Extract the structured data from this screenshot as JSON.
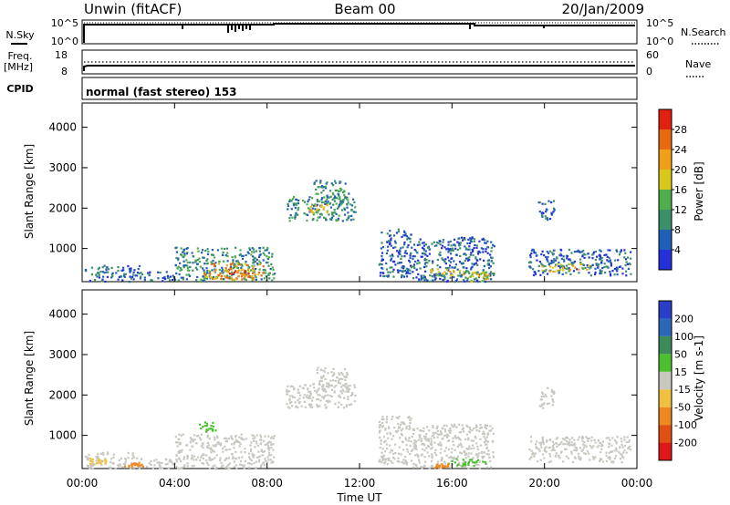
{
  "header": {
    "station": "Unwin (fitACF)",
    "beam": "Beam 00",
    "date": "20/Jan/2009"
  },
  "top_panels": {
    "nsky_label": "N.Sky",
    "nsky_ticks": [
      "10^5",
      "10^0"
    ],
    "nsearch_label": "N.Search",
    "nsearch_ticks": [
      "10^5",
      "10^0"
    ],
    "freq_label": "Freq.",
    "freq_unit": "[MHz]",
    "freq_ticks": [
      "18",
      "8"
    ],
    "nave_label": "Nave",
    "nave_ticks": [
      "60",
      "0"
    ],
    "cpid_label": "CPID",
    "cpid_text": "normal (fast stereo) 153"
  },
  "colors": {
    "power": [
      "#2430d8",
      "#1f5fb8",
      "#3b8f6a",
      "#4fae4c",
      "#d8c81c",
      "#f0a018",
      "#e86a10",
      "#e02010"
    ],
    "velocity": [
      "#2a3fc8",
      "#2d68b8",
      "#3d8a5a",
      "#4bbf2e",
      "#c8c8c0",
      "#f0c040",
      "#f08820",
      "#e05010",
      "#e01818"
    ],
    "velocity_ground": "#c8c8c0"
  },
  "chart_data": [
    {
      "type": "heatmap",
      "name": "Power",
      "ylabel": "Slant Range [km]",
      "yticks": [
        1000,
        2000,
        3000,
        4000
      ],
      "ylim": [
        180,
        4600
      ],
      "xlim": [
        0,
        24
      ],
      "colorbar_label": "Power [dB]",
      "colorbar_ticks": [
        4,
        8,
        12,
        16,
        20,
        24,
        28
      ],
      "colorbar_range": [
        0,
        32
      ],
      "regions": [
        {
          "t0": 0.1,
          "t1": 2.5,
          "r0": 200,
          "r1": 600,
          "level": 1
        },
        {
          "t0": 2.5,
          "t1": 4.0,
          "r0": 200,
          "r1": 450,
          "level": 1
        },
        {
          "t0": 4.0,
          "t1": 8.3,
          "r0": 200,
          "r1": 1050,
          "level": 2
        },
        {
          "t0": 5.2,
          "t1": 7.8,
          "r0": 250,
          "r1": 650,
          "level": 5
        },
        {
          "t0": 6.2,
          "t1": 7.4,
          "r0": 250,
          "r1": 500,
          "level": 6
        },
        {
          "t0": 8.8,
          "t1": 11.8,
          "r0": 1700,
          "r1": 2300,
          "level": 2
        },
        {
          "t0": 10.0,
          "t1": 11.5,
          "r0": 2100,
          "r1": 2700,
          "level": 2
        },
        {
          "t0": 9.8,
          "t1": 10.6,
          "r0": 1900,
          "r1": 2100,
          "level": 4
        },
        {
          "t0": 12.8,
          "t1": 14.2,
          "r0": 300,
          "r1": 1500,
          "level": 1
        },
        {
          "t0": 14.2,
          "t1": 17.8,
          "r0": 200,
          "r1": 1300,
          "level": 1
        },
        {
          "t0": 15.0,
          "t1": 16.5,
          "r0": 350,
          "r1": 550,
          "level": 4
        },
        {
          "t0": 16.5,
          "t1": 17.5,
          "r0": 250,
          "r1": 450,
          "level": 3
        },
        {
          "t0": 19.3,
          "t1": 23.7,
          "r0": 350,
          "r1": 1000,
          "level": 1
        },
        {
          "t0": 19.8,
          "t1": 22.0,
          "r0": 450,
          "r1": 650,
          "level": 4
        },
        {
          "t0": 19.7,
          "t1": 20.4,
          "r0": 1700,
          "r1": 2200,
          "level": 1
        },
        {
          "t0": 16.8,
          "t1": 17.6,
          "r0": 200,
          "r1": 400,
          "level": 4
        }
      ]
    },
    {
      "type": "heatmap",
      "name": "Velocity",
      "ylabel": "Slant Range [km]",
      "yticks": [
        1000,
        2000,
        3000,
        4000
      ],
      "ylim": [
        180,
        4600
      ],
      "xlim": [
        0,
        24
      ],
      "xlabel": "Time UT",
      "xticks": [
        "00:00",
        "04:00",
        "08:00",
        "12:00",
        "16:00",
        "20:00",
        "00:00"
      ],
      "colorbar_label": "Velocity [m s-1]",
      "colorbar_ticks": [
        200,
        100,
        50,
        15,
        -15,
        -50,
        -100,
        -200
      ],
      "regions": [
        {
          "t0": 0.1,
          "t1": 2.5,
          "r0": 200,
          "r1": 600,
          "level": 4
        },
        {
          "t0": 2.5,
          "t1": 4.0,
          "r0": 200,
          "r1": 450,
          "level": 4
        },
        {
          "t0": 4.0,
          "t1": 8.3,
          "r0": 200,
          "r1": 1050,
          "level": 4
        },
        {
          "t0": 8.8,
          "t1": 11.8,
          "r0": 1700,
          "r1": 2300,
          "level": 4
        },
        {
          "t0": 10.0,
          "t1": 11.5,
          "r0": 2100,
          "r1": 2700,
          "level": 4
        },
        {
          "t0": 12.8,
          "t1": 14.2,
          "r0": 300,
          "r1": 1500,
          "level": 4
        },
        {
          "t0": 14.2,
          "t1": 17.8,
          "r0": 200,
          "r1": 1300,
          "level": 4
        },
        {
          "t0": 19.3,
          "t1": 23.7,
          "r0": 350,
          "r1": 1000,
          "level": 4
        },
        {
          "t0": 19.7,
          "t1": 20.4,
          "r0": 1700,
          "r1": 2200,
          "level": 4
        },
        {
          "t0": 5.0,
          "t1": 5.8,
          "r0": 1100,
          "r1": 1350,
          "level": 3
        },
        {
          "t0": 15.8,
          "t1": 17.5,
          "r0": 250,
          "r1": 450,
          "level": 3
        },
        {
          "t0": 1.8,
          "t1": 2.6,
          "r0": 250,
          "r1": 350,
          "level": 6
        },
        {
          "t0": 15.2,
          "t1": 15.8,
          "r0": 220,
          "r1": 320,
          "level": 6
        },
        {
          "t0": 0.3,
          "t1": 1.0,
          "r0": 300,
          "r1": 450,
          "level": 5
        }
      ]
    }
  ]
}
